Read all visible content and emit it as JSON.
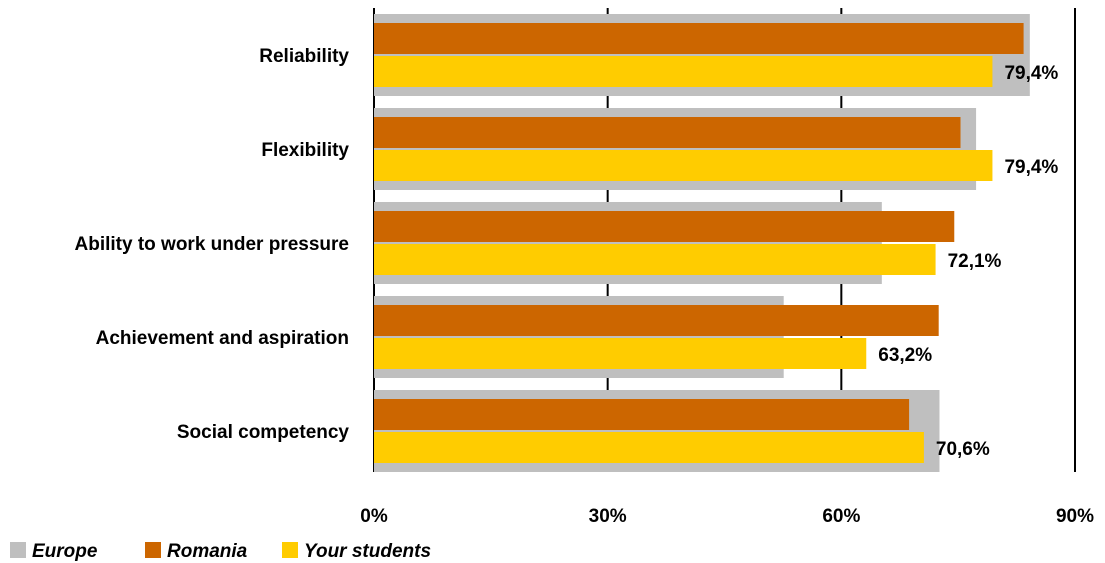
{
  "chart_data": {
    "type": "bar",
    "orientation": "horizontal",
    "categories": [
      "Reliability",
      "Flexibility",
      "Ability to work under pressure",
      "Achievement and aspiration",
      "Social competency"
    ],
    "series": [
      {
        "name": "Europe",
        "color": "#BFBFBF",
        "values": [
          84.2,
          77.3,
          65.2,
          52.6,
          72.6
        ]
      },
      {
        "name": "Romania",
        "color": "#CC6600",
        "values": [
          83.4,
          75.3,
          74.5,
          72.5,
          68.7
        ]
      },
      {
        "name": "Your students",
        "color": "#FFCC00",
        "values": [
          79.4,
          79.4,
          72.1,
          63.2,
          70.6
        ]
      }
    ],
    "data_labels": [
      "79,4%",
      "79,4%",
      "72,1%",
      "63,2%",
      "70,6%"
    ],
    "x_ticks": [
      "0%",
      "30%",
      "60%",
      "90%"
    ],
    "x_tick_values": [
      0,
      30,
      60,
      90
    ],
    "xlim": [
      0,
      90
    ],
    "grid": true,
    "legend_position": "bottom-left"
  }
}
